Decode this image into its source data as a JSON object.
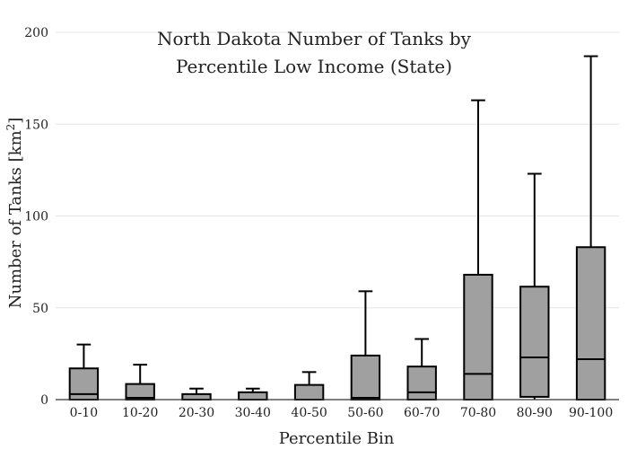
{
  "chart_data": {
    "type": "box",
    "title_lines": [
      "North Dakota Number of Tanks by",
      "Percentile Low Income (State)"
    ],
    "xlabel": "Percentile Bin",
    "ylabel": "Number of Tanks",
    "ylabel_unit_base": "[km",
    "ylabel_unit_sup": "2",
    "ylabel_unit_close": "]",
    "ylim": [
      0,
      200
    ],
    "yticks": [
      0,
      50,
      100,
      150,
      200
    ],
    "grid": true,
    "categories": [
      "0-10",
      "10-20",
      "20-30",
      "30-40",
      "40-50",
      "50-60",
      "60-70",
      "70-80",
      "80-90",
      "90-100"
    ],
    "boxes": [
      {
        "low": 0,
        "q1": 0,
        "median": 3,
        "q3": 17,
        "high": 30
      },
      {
        "low": 0,
        "q1": 0,
        "median": 1,
        "q3": 8.5,
        "high": 19
      },
      {
        "low": 0,
        "q1": 0,
        "median": 0,
        "q3": 3,
        "high": 6
      },
      {
        "low": 0,
        "q1": 0,
        "median": 0,
        "q3": 4,
        "high": 6
      },
      {
        "low": 0,
        "q1": 0,
        "median": 0,
        "q3": 8,
        "high": 15
      },
      {
        "low": 0,
        "q1": 0,
        "median": 1,
        "q3": 24,
        "high": 59
      },
      {
        "low": 0,
        "q1": 0,
        "median": 4,
        "q3": 18,
        "high": 33
      },
      {
        "low": 0,
        "q1": 0,
        "median": 14,
        "q3": 68,
        "high": 163
      },
      {
        "low": 0,
        "q1": 1.5,
        "median": 23,
        "q3": 61.5,
        "high": 123
      },
      {
        "low": 0,
        "q1": 0,
        "median": 22,
        "q3": 83,
        "high": 187
      }
    ]
  }
}
